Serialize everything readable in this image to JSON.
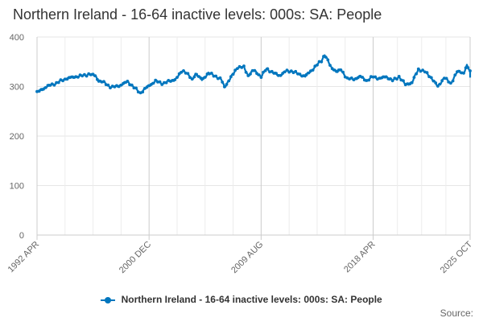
{
  "chart_data": {
    "type": "line",
    "title": "Northern Ireland - 16-64 inactive levels: 000s: SA: People",
    "xlabel": "",
    "ylabel": "",
    "ylim": [
      0,
      400
    ],
    "yticks": [
      0,
      100,
      200,
      300,
      400
    ],
    "x_tick_labels": [
      "1992 APR",
      "2000 DEC",
      "2009 AUG",
      "2018 APR",
      "2025 OCT"
    ],
    "legend": "bottom-center",
    "grid": true,
    "series": [
      {
        "name": "Northern Ireland - 16-64 inactive levels: 000s: SA: People",
        "color": "#0076be",
        "points": [
          {
            "x": "1992 APR",
            "y": 288
          },
          {
            "x": "1993 JAN",
            "y": 300
          },
          {
            "x": "1993 OCT",
            "y": 307
          },
          {
            "x": "1994 JUL",
            "y": 316
          },
          {
            "x": "1995 APR",
            "y": 320
          },
          {
            "x": "1996 JAN",
            "y": 323
          },
          {
            "x": "1996 APR",
            "y": 325
          },
          {
            "x": "1996 OCT",
            "y": 322
          },
          {
            "x": "1997 JAN",
            "y": 312
          },
          {
            "x": "1997 JUL",
            "y": 307
          },
          {
            "x": "1998 JAN",
            "y": 298
          },
          {
            "x": "1998 OCT",
            "y": 303
          },
          {
            "x": "1999 APR",
            "y": 310
          },
          {
            "x": "1999 OCT",
            "y": 298
          },
          {
            "x": "2000 APR",
            "y": 287
          },
          {
            "x": "2000 DEC",
            "y": 302
          },
          {
            "x": "2001 JUN",
            "y": 311
          },
          {
            "x": "2002 JAN",
            "y": 306
          },
          {
            "x": "2002 JUL",
            "y": 311
          },
          {
            "x": "2003 JAN",
            "y": 315
          },
          {
            "x": "2003 JUL",
            "y": 333
          },
          {
            "x": "2003 OCT",
            "y": 329
          },
          {
            "x": "2004 APR",
            "y": 314
          },
          {
            "x": "2004 JUL",
            "y": 326
          },
          {
            "x": "2005 JAN",
            "y": 314
          },
          {
            "x": "2005 JUL",
            "y": 327
          },
          {
            "x": "2006 JAN",
            "y": 322
          },
          {
            "x": "2006 JUL",
            "y": 314
          },
          {
            "x": "2006 OCT",
            "y": 299
          },
          {
            "x": "2007 JUN",
            "y": 325
          },
          {
            "x": "2007 OCT",
            "y": 339
          },
          {
            "x": "2008 APR",
            "y": 339
          },
          {
            "x": "2008 AUG",
            "y": 322
          },
          {
            "x": "2009 JAN",
            "y": 333
          },
          {
            "x": "2009 AUG",
            "y": 320
          },
          {
            "x": "2010 JAN",
            "y": 336
          },
          {
            "x": "2010 JUL",
            "y": 328
          },
          {
            "x": "2011 JAN",
            "y": 322
          },
          {
            "x": "2011 JUL",
            "y": 331
          },
          {
            "x": "2012 JAN",
            "y": 331
          },
          {
            "x": "2012 JUL",
            "y": 325
          },
          {
            "x": "2013 JAN",
            "y": 321
          },
          {
            "x": "2013 JUL",
            "y": 333
          },
          {
            "x": "2013 OCT",
            "y": 340
          },
          {
            "x": "2014 APR",
            "y": 352
          },
          {
            "x": "2014 JUL",
            "y": 365
          },
          {
            "x": "2014 OCT",
            "y": 352
          },
          {
            "x": "2015 JAN",
            "y": 338
          },
          {
            "x": "2015 JUL",
            "y": 330
          },
          {
            "x": "2015 OCT",
            "y": 334
          },
          {
            "x": "2016 APR",
            "y": 316
          },
          {
            "x": "2016 OCT",
            "y": 315
          },
          {
            "x": "2017 APR",
            "y": 320
          },
          {
            "x": "2017 OCT",
            "y": 312
          },
          {
            "x": "2018 APR",
            "y": 320
          },
          {
            "x": "2018 OCT",
            "y": 316
          },
          {
            "x": "2019 APR",
            "y": 320
          },
          {
            "x": "2019 OCT",
            "y": 312
          },
          {
            "x": "2020 APR",
            "y": 320
          },
          {
            "x": "2020 OCT",
            "y": 304
          },
          {
            "x": "2021 APR",
            "y": 308
          },
          {
            "x": "2021 OCT",
            "y": 335
          },
          {
            "x": "2022 APR",
            "y": 330
          },
          {
            "x": "2022 OCT",
            "y": 318
          },
          {
            "x": "2023 APR",
            "y": 300
          },
          {
            "x": "2023 OCT",
            "y": 318
          },
          {
            "x": "2024 APR",
            "y": 306
          },
          {
            "x": "2024 OCT",
            "y": 330
          },
          {
            "x": "2025 APR",
            "y": 328
          },
          {
            "x": "2025 JUL",
            "y": 342
          },
          {
            "x": "2025 OCT",
            "y": 330
          },
          {
            "x": "2025 OCT",
            "y": 318
          }
        ]
      }
    ],
    "credit": "Source:"
  }
}
